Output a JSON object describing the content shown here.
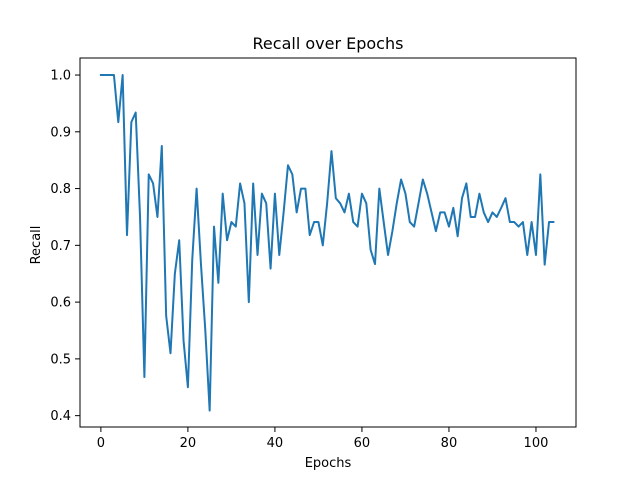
{
  "chart_data": {
    "type": "line",
    "title": "Recall over Epochs",
    "xlabel": "Epochs",
    "ylabel": "Recall",
    "xlim": [
      -4.8,
      109.2
    ],
    "ylim": [
      0.38,
      1.03
    ],
    "xticks": [
      0,
      20,
      40,
      60,
      80,
      100
    ],
    "xtick_labels": [
      "0",
      "20",
      "40",
      "60",
      "80",
      "100"
    ],
    "yticks": [
      0.4,
      0.5,
      0.6,
      0.7,
      0.8,
      0.9,
      1.0
    ],
    "ytick_labels": [
      "0.4",
      "0.5",
      "0.6",
      "0.7",
      "0.8",
      "0.9",
      "1.0"
    ],
    "grid": false,
    "color": "#1f77b4",
    "series": [
      {
        "x": [
          0,
          1,
          2,
          3,
          4,
          5,
          6,
          7,
          8,
          9,
          10,
          11,
          12,
          13,
          14,
          15,
          16,
          17,
          18,
          19,
          20,
          21,
          22,
          23,
          24,
          25,
          26,
          27,
          28,
          29,
          30,
          31,
          32,
          33,
          34,
          35,
          36,
          37,
          38,
          39,
          40,
          41,
          42,
          43,
          44,
          45,
          46,
          47,
          48,
          49,
          50,
          51,
          52,
          53,
          54,
          55,
          56,
          57,
          58,
          59,
          60,
          61,
          62,
          63,
          64,
          65,
          66,
          67,
          68,
          69,
          70,
          71,
          72,
          73,
          74,
          75,
          76,
          77,
          78,
          79,
          80,
          81,
          82,
          83,
          84,
          85,
          86,
          87,
          88,
          89,
          90,
          91,
          92,
          93,
          94,
          95,
          96,
          97,
          98,
          99,
          100,
          101,
          102,
          103,
          104
        ],
        "values": [
          1.0,
          1.0,
          1.0,
          1.0,
          0.917,
          1.0,
          0.718,
          0.917,
          0.934,
          0.75,
          0.468,
          0.825,
          0.809,
          0.75,
          0.875,
          0.576,
          0.51,
          0.65,
          0.709,
          0.532,
          0.45,
          0.675,
          0.8,
          0.667,
          0.55,
          0.409,
          0.733,
          0.634,
          0.791,
          0.709,
          0.741,
          0.733,
          0.809,
          0.774,
          0.6,
          0.809,
          0.683,
          0.791,
          0.774,
          0.659,
          0.791,
          0.683,
          0.758,
          0.841,
          0.825,
          0.758,
          0.8,
          0.8,
          0.718,
          0.741,
          0.741,
          0.7,
          0.774,
          0.866,
          0.783,
          0.774,
          0.758,
          0.791,
          0.741,
          0.733,
          0.791,
          0.774,
          0.692,
          0.667,
          0.8,
          0.741,
          0.683,
          0.725,
          0.774,
          0.816,
          0.791,
          0.741,
          0.733,
          0.774,
          0.816,
          0.791,
          0.758,
          0.725,
          0.758,
          0.758,
          0.733,
          0.766,
          0.716,
          0.783,
          0.809,
          0.75,
          0.75,
          0.791,
          0.758,
          0.741,
          0.758,
          0.75,
          0.766,
          0.783,
          0.741,
          0.741,
          0.733,
          0.741,
          0.683,
          0.741,
          0.683,
          0.825,
          0.666,
          0.741,
          0.741
        ]
      }
    ]
  }
}
